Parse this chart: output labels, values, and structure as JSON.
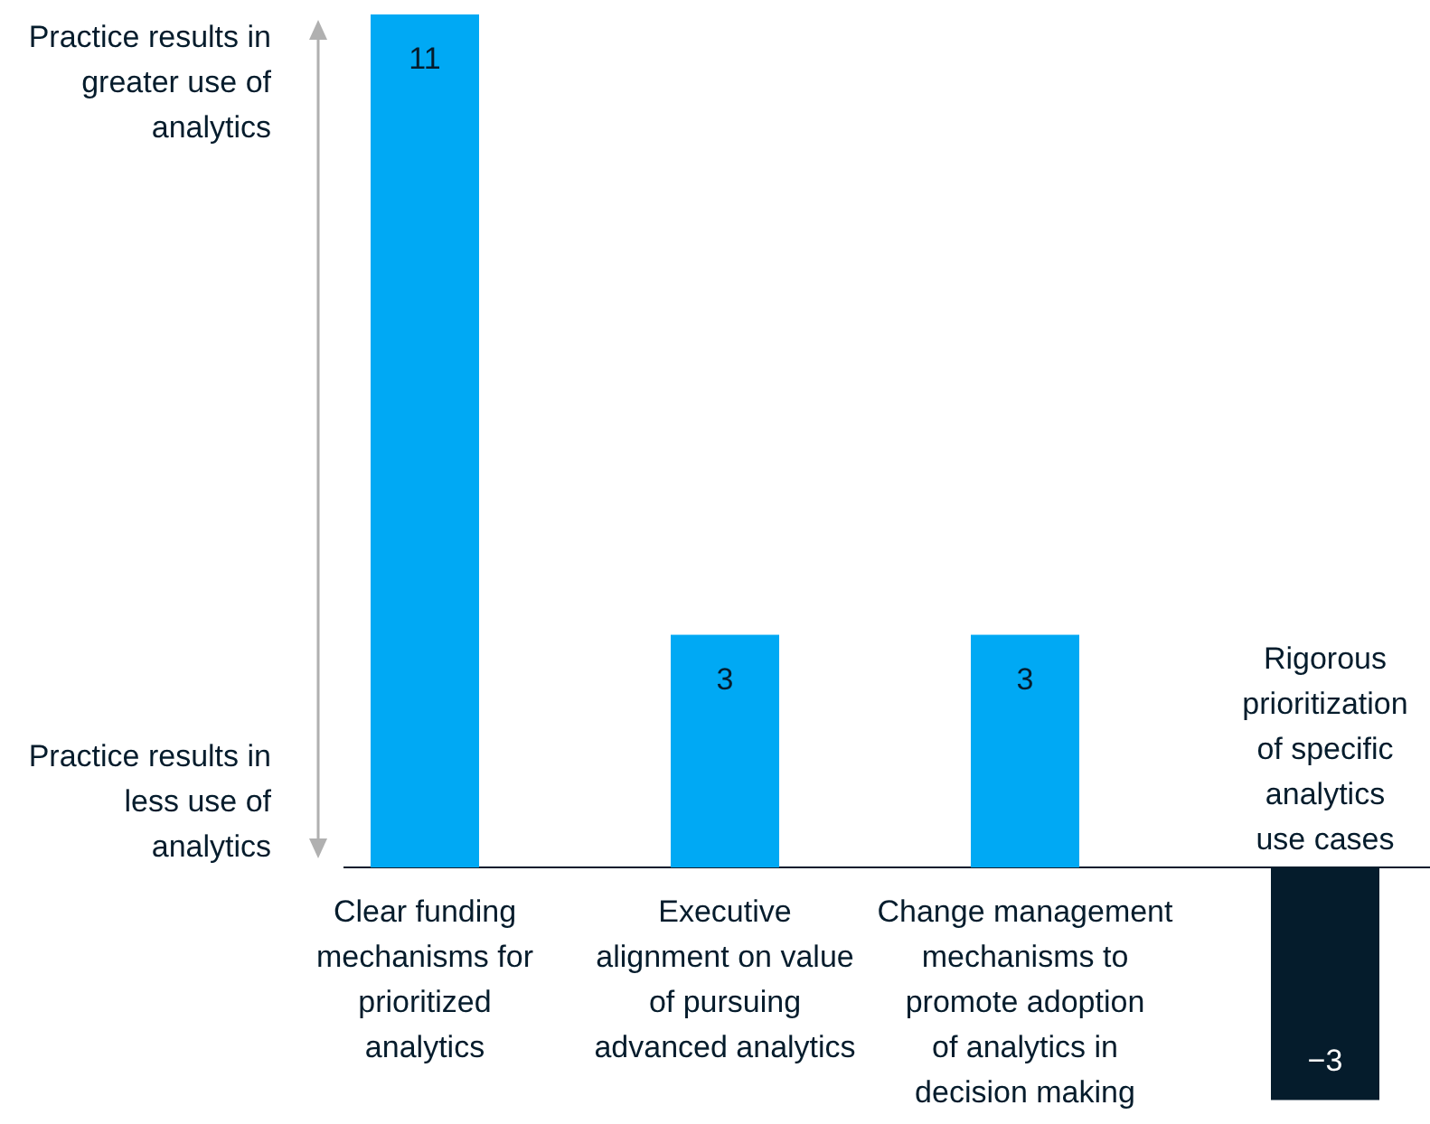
{
  "chart_data": {
    "type": "bar",
    "categories": [
      "Clear funding mechanisms for prioritized analytics",
      "Executive alignment on value of pursuing advanced analytics",
      "Change management mechanisms to promote adoption of analytics in decision making",
      "Rigorous prioritization of specific analytics use cases"
    ],
    "values": [
      11,
      3,
      3,
      -3
    ],
    "colors": [
      "#00a9f4",
      "#00a9f4",
      "#00a9f4",
      "#051c2c"
    ],
    "data_labels": true,
    "annotations": [
      "Practice results in greater use of analytics",
      "Practice results in less use of analytics"
    ]
  }
}
